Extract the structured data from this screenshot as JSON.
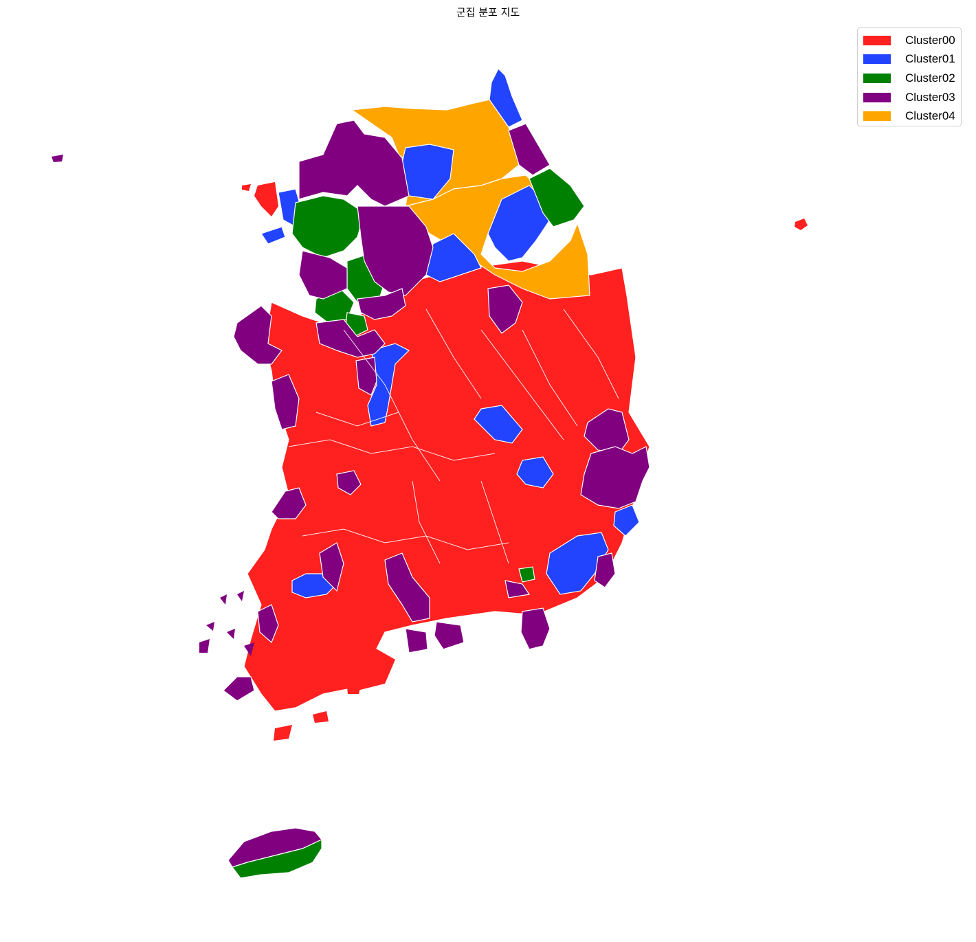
{
  "title": "군집 분포 지도",
  "legend": {
    "items": [
      {
        "label": "Cluster00",
        "color": "#ff2020"
      },
      {
        "label": "Cluster01",
        "color": "#2244ff"
      },
      {
        "label": "Cluster02",
        "color": "#008000"
      },
      {
        "label": "Cluster03",
        "color": "#800080"
      },
      {
        "label": "Cluster04",
        "color": "#ffa500"
      }
    ]
  },
  "colors": {
    "region_border": "#ffffff",
    "background": "#ffffff"
  }
}
